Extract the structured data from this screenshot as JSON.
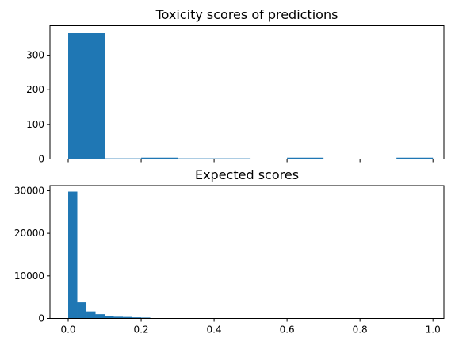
{
  "chart_data": [
    {
      "type": "bar",
      "title": "Toxicity scores of predictions",
      "xlabel": "",
      "ylabel": "",
      "xlim": [
        -0.05,
        1.03
      ],
      "ylim": [
        0,
        385
      ],
      "x_ticks": [
        0.0,
        0.2,
        0.4,
        0.6,
        0.8,
        1.0
      ],
      "x_tick_labels_shown": false,
      "y_ticks": [
        0,
        100,
        200,
        300
      ],
      "y_tick_labels": [
        "0",
        "100",
        "200",
        "300"
      ],
      "grid": false,
      "bar_color": "#1f77b4",
      "bins": [
        {
          "x0": 0.0,
          "x1": 0.1,
          "count": 365
        },
        {
          "x0": 0.1,
          "x1": 0.2,
          "count": 2
        },
        {
          "x0": 0.2,
          "x1": 0.3,
          "count": 4
        },
        {
          "x0": 0.3,
          "x1": 0.4,
          "count": 2
        },
        {
          "x0": 0.4,
          "x1": 0.5,
          "count": 2
        },
        {
          "x0": 0.5,
          "x1": 0.6,
          "count": 0
        },
        {
          "x0": 0.6,
          "x1": 0.7,
          "count": 4
        },
        {
          "x0": 0.7,
          "x1": 0.8,
          "count": 0
        },
        {
          "x0": 0.8,
          "x1": 0.9,
          "count": 1
        },
        {
          "x0": 0.9,
          "x1": 1.0,
          "count": 4
        }
      ]
    },
    {
      "type": "bar",
      "title": "Expected scores",
      "xlabel": "",
      "ylabel": "",
      "xlim": [
        -0.05,
        1.03
      ],
      "ylim": [
        0,
        31200
      ],
      "x_ticks": [
        0.0,
        0.2,
        0.4,
        0.6,
        0.8,
        1.0
      ],
      "x_tick_labels": [
        "0.0",
        "0.2",
        "0.4",
        "0.6",
        "0.8",
        "1.0"
      ],
      "x_tick_labels_shown": true,
      "y_ticks": [
        0,
        10000,
        20000,
        30000
      ],
      "y_tick_labels": [
        "0",
        "10000",
        "20000",
        "30000"
      ],
      "grid": false,
      "bar_color": "#1f77b4",
      "bins": [
        {
          "x0": 0.0,
          "x1": 0.025,
          "count": 29800
        },
        {
          "x0": 0.025,
          "x1": 0.05,
          "count": 3800
        },
        {
          "x0": 0.05,
          "x1": 0.075,
          "count": 1650
        },
        {
          "x0": 0.075,
          "x1": 0.1,
          "count": 1000
        },
        {
          "x0": 0.1,
          "x1": 0.125,
          "count": 600
        },
        {
          "x0": 0.125,
          "x1": 0.15,
          "count": 400
        },
        {
          "x0": 0.15,
          "x1": 0.175,
          "count": 350
        },
        {
          "x0": 0.175,
          "x1": 0.2,
          "count": 250
        },
        {
          "x0": 0.2,
          "x1": 0.225,
          "count": 200
        },
        {
          "x0": 0.225,
          "x1": 0.25,
          "count": 60
        },
        {
          "x0": 0.25,
          "x1": 0.275,
          "count": 40
        },
        {
          "x0": 0.275,
          "x1": 0.3,
          "count": 30
        },
        {
          "x0": 0.3,
          "x1": 0.325,
          "count": 20
        },
        {
          "x0": 0.325,
          "x1": 0.35,
          "count": 15
        },
        {
          "x0": 0.35,
          "x1": 0.375,
          "count": 10
        },
        {
          "x0": 0.375,
          "x1": 0.4,
          "count": 8
        }
      ]
    }
  ]
}
